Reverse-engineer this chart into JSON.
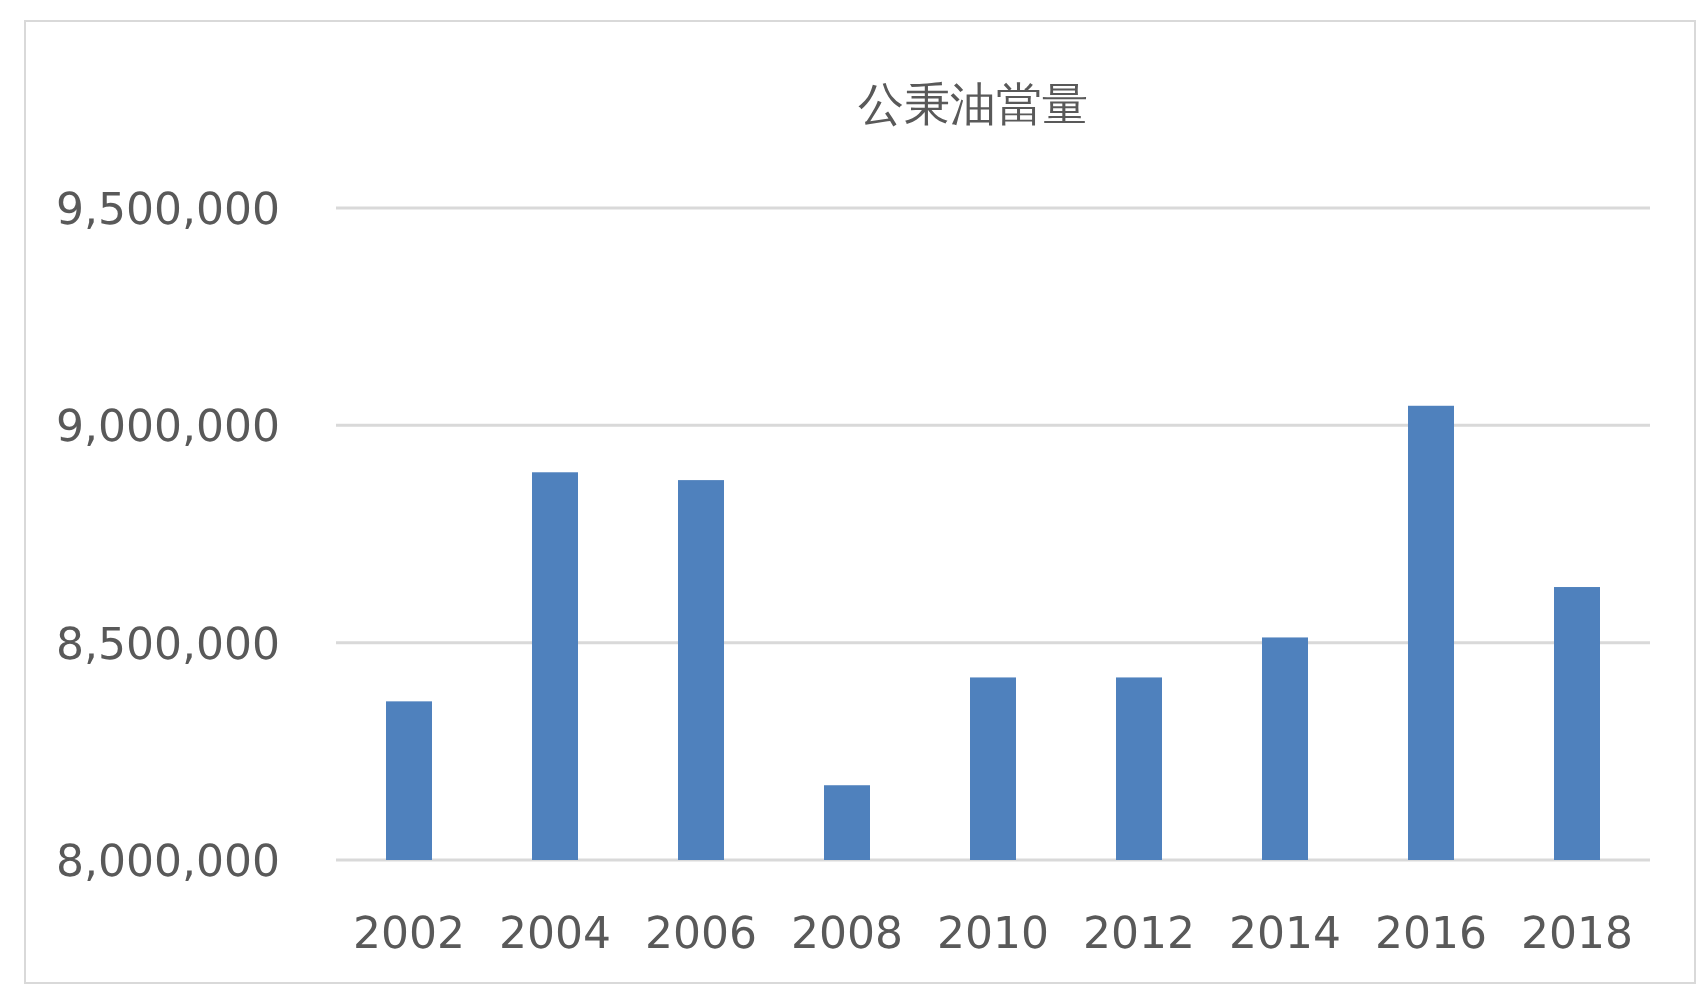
{
  "chart_data": {
    "type": "bar",
    "title": "公秉油當量",
    "categories": [
      "2002",
      "2004",
      "2006",
      "2008",
      "2010",
      "2012",
      "2014",
      "2016",
      "2018"
    ],
    "values": [
      8365000,
      8892000,
      8874000,
      8172000,
      8420000,
      8420000,
      8512000,
      9045000,
      8628000
    ],
    "color": "#4f81bd",
    "ylim": [
      8000000,
      9500000
    ],
    "yticks": [
      {
        "value": 8000000,
        "label": "8,000,000"
      },
      {
        "value": 8500000,
        "label": "8,500,000"
      },
      {
        "value": 9000000,
        "label": "9,000,000"
      },
      {
        "value": 9500000,
        "label": "9,500,000"
      }
    ],
    "grid": "y"
  }
}
